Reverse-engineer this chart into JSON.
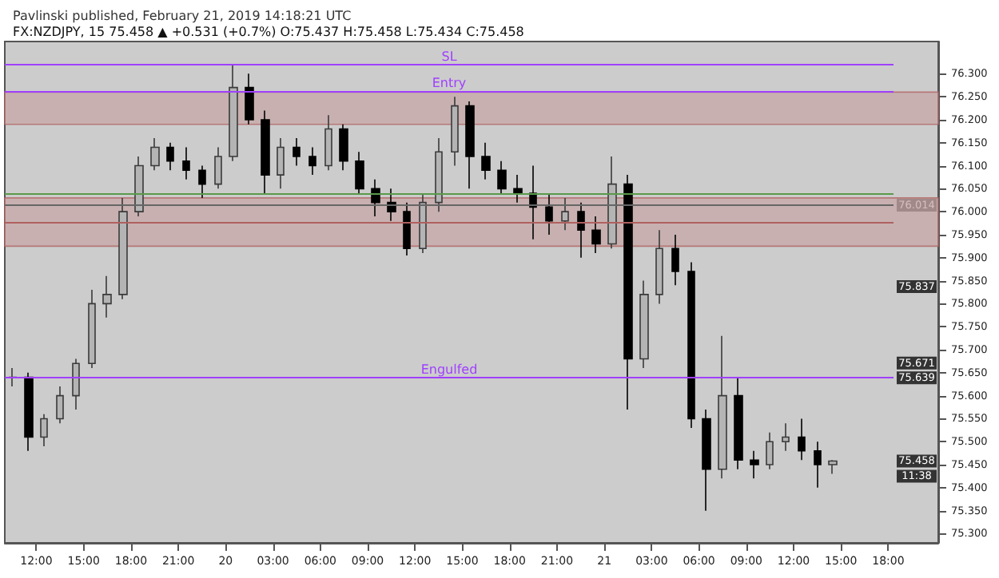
{
  "chart_data": {
    "type": "candlestick",
    "title": "Pavlinski published, February 21, 2019 14:18:21 UTC",
    "subtitle": "FX:NZDJPY, 15 75.458 ▲ +0.531 (+0.7%) O:75.437 H:75.458 L:75.434 C:75.458",
    "x": [
      "2019-02-19T10:30",
      "2019-02-19T11:30",
      "2019-02-19T12:30",
      "2019-02-19T13:30",
      "2019-02-19T14:30",
      "2019-02-19T15:30",
      "2019-02-19T16:30",
      "2019-02-19T17:30",
      "2019-02-19T18:30",
      "2019-02-19T19:30",
      "2019-02-19T20:30",
      "2019-02-19T21:30",
      "2019-02-19T22:30",
      "2019-02-19T23:30",
      "2019-02-20T00:30",
      "2019-02-20T01:30",
      "2019-02-20T02:30",
      "2019-02-20T03:30",
      "2019-02-20T04:30",
      "2019-02-20T05:30",
      "2019-02-20T06:30",
      "2019-02-20T07:30",
      "2019-02-20T08:30",
      "2019-02-20T09:30",
      "2019-02-20T10:30",
      "2019-02-20T11:30",
      "2019-02-20T12:30",
      "2019-02-20T13:30",
      "2019-02-20T14:30",
      "2019-02-20T15:30",
      "2019-02-20T16:30",
      "2019-02-20T17:30",
      "2019-02-20T18:30",
      "2019-02-20T19:30",
      "2019-02-20T20:30",
      "2019-02-20T21:30",
      "2019-02-20T22:30",
      "2019-02-20T23:30",
      "2019-02-21T00:30",
      "2019-02-21T01:30",
      "2019-02-21T02:30",
      "2019-02-21T03:30",
      "2019-02-21T04:30",
      "2019-02-21T05:30",
      "2019-02-21T06:30",
      "2019-02-21T07:30",
      "2019-02-21T08:30",
      "2019-02-21T09:30",
      "2019-02-21T10:30",
      "2019-02-21T11:30",
      "2019-02-21T12:30",
      "2019-02-21T13:30",
      "2019-02-21T14:30"
    ],
    "ohlc": [
      [
        75.64,
        75.66,
        75.62,
        75.64
      ],
      [
        75.64,
        75.65,
        75.48,
        75.51
      ],
      [
        75.51,
        75.56,
        75.49,
        75.55
      ],
      [
        75.55,
        75.62,
        75.54,
        75.6
      ],
      [
        75.6,
        75.68,
        75.57,
        75.67
      ],
      [
        75.67,
        75.83,
        75.66,
        75.8
      ],
      [
        75.8,
        75.86,
        75.77,
        75.82
      ],
      [
        75.82,
        76.03,
        75.81,
        76.0
      ],
      [
        76.0,
        76.12,
        75.99,
        76.1
      ],
      [
        76.1,
        76.16,
        76.09,
        76.14
      ],
      [
        76.14,
        76.15,
        76.09,
        76.11
      ],
      [
        76.11,
        76.14,
        76.07,
        76.09
      ],
      [
        76.09,
        76.1,
        76.03,
        76.06
      ],
      [
        76.06,
        76.14,
        76.05,
        76.12
      ],
      [
        76.12,
        76.32,
        76.11,
        76.27
      ],
      [
        76.27,
        76.3,
        76.19,
        76.2
      ],
      [
        76.2,
        76.22,
        76.04,
        76.08
      ],
      [
        76.08,
        76.16,
        76.05,
        76.14
      ],
      [
        76.14,
        76.16,
        76.1,
        76.12
      ],
      [
        76.12,
        76.14,
        76.08,
        76.1
      ],
      [
        76.1,
        76.21,
        76.09,
        76.18
      ],
      [
        76.18,
        76.19,
        76.09,
        76.11
      ],
      [
        76.11,
        76.13,
        76.04,
        76.05
      ],
      [
        76.05,
        76.07,
        75.99,
        76.02
      ],
      [
        76.02,
        76.05,
        75.98,
        76.0
      ],
      [
        76.0,
        76.02,
        75.905,
        75.92
      ],
      [
        75.92,
        76.04,
        75.91,
        76.02
      ],
      [
        76.02,
        76.16,
        76.0,
        76.13
      ],
      [
        76.13,
        76.25,
        76.1,
        76.23
      ],
      [
        76.23,
        76.24,
        76.05,
        76.12
      ],
      [
        76.12,
        76.15,
        76.07,
        76.09
      ],
      [
        76.09,
        76.11,
        76.04,
        76.05
      ],
      [
        76.05,
        76.08,
        76.02,
        76.04
      ],
      [
        76.04,
        76.1,
        75.94,
        76.01
      ],
      [
        76.01,
        76.04,
        75.95,
        75.98
      ],
      [
        75.98,
        76.03,
        75.96,
        76.0
      ],
      [
        76.0,
        76.02,
        75.9,
        75.96
      ],
      [
        75.96,
        75.99,
        75.91,
        75.93
      ],
      [
        75.93,
        76.12,
        75.92,
        76.06
      ],
      [
        76.06,
        76.08,
        75.57,
        75.68
      ],
      [
        75.68,
        75.85,
        75.66,
        75.82
      ],
      [
        75.82,
        75.96,
        75.8,
        75.92
      ],
      [
        75.92,
        75.95,
        75.84,
        75.87
      ],
      [
        75.87,
        75.89,
        75.53,
        75.55
      ],
      [
        75.55,
        75.57,
        75.35,
        75.44
      ],
      [
        75.44,
        75.73,
        75.42,
        75.6
      ],
      [
        75.6,
        75.64,
        75.44,
        75.46
      ],
      [
        75.46,
        75.48,
        75.42,
        75.45
      ],
      [
        75.45,
        75.52,
        75.44,
        75.5
      ],
      [
        75.5,
        75.54,
        75.48,
        75.51
      ],
      [
        75.51,
        75.55,
        75.46,
        75.48
      ],
      [
        75.48,
        75.5,
        75.4,
        75.45
      ],
      [
        75.45,
        75.46,
        75.43,
        75.458
      ]
    ],
    "xlim": [
      "2019-02-19T10:00",
      "2019-02-21T21:10"
    ],
    "xticks": [
      {
        "value": "2019-02-19T12:00",
        "label": "12:00"
      },
      {
        "value": "2019-02-19T15:00",
        "label": "15:00"
      },
      {
        "value": "2019-02-19T18:00",
        "label": "18:00"
      },
      {
        "value": "2019-02-19T21:00",
        "label": "21:00"
      },
      {
        "value": "2019-02-20T00:00",
        "label": "20"
      },
      {
        "value": "2019-02-20T03:00",
        "label": "03:00"
      },
      {
        "value": "2019-02-20T06:00",
        "label": "06:00"
      },
      {
        "value": "2019-02-20T09:00",
        "label": "09:00"
      },
      {
        "value": "2019-02-20T12:00",
        "label": "12:00"
      },
      {
        "value": "2019-02-20T15:00",
        "label": "15:00"
      },
      {
        "value": "2019-02-20T18:00",
        "label": "18:00"
      },
      {
        "value": "2019-02-20T21:00",
        "label": "21:00"
      },
      {
        "value": "2019-02-21T00:00",
        "label": "21"
      },
      {
        "value": "2019-02-21T03:00",
        "label": "03:00"
      },
      {
        "value": "2019-02-21T06:00",
        "label": "06:00"
      },
      {
        "value": "2019-02-21T09:00",
        "label": "09:00"
      },
      {
        "value": "2019-02-21T12:00",
        "label": "12:00"
      },
      {
        "value": "2019-02-21T15:00",
        "label": "15:00"
      },
      {
        "value": "2019-02-21T18:00",
        "label": "18:00"
      }
    ],
    "ylim": [
      75.28,
      76.37
    ],
    "yticks": [
      {
        "value": 75.3,
        "label": "75.300"
      },
      {
        "value": 75.35,
        "label": "75.350"
      },
      {
        "value": 75.4,
        "label": "75.400"
      },
      {
        "value": 75.45,
        "label": "75.450"
      },
      {
        "value": 75.5,
        "label": "75.500"
      },
      {
        "value": 75.55,
        "label": "75.550"
      },
      {
        "value": 75.6,
        "label": "75.600"
      },
      {
        "value": 75.65,
        "label": "75.650"
      },
      {
        "value": 75.7,
        "label": "75.700"
      },
      {
        "value": 75.75,
        "label": "75.750"
      },
      {
        "value": 75.8,
        "label": "75.800"
      },
      {
        "value": 75.85,
        "label": "75.850"
      },
      {
        "value": 75.9,
        "label": "75.900"
      },
      {
        "value": 75.95,
        "label": "75.950"
      },
      {
        "value": 76.0,
        "label": "76.000"
      },
      {
        "value": 76.05,
        "label": "76.050"
      },
      {
        "value": 76.1,
        "label": "76.100"
      },
      {
        "value": 76.15,
        "label": "76.150"
      },
      {
        "value": 76.2,
        "label": "76.200"
      },
      {
        "value": 76.25,
        "label": "76.250"
      },
      {
        "value": 76.3,
        "label": "76.300"
      }
    ],
    "bands": [
      {
        "axis": "y",
        "from": 76.19,
        "to": 76.26,
        "color": "#c7a7a7"
      },
      {
        "axis": "y",
        "from": 75.925,
        "to": 76.03,
        "color": "#c7a7a7"
      }
    ],
    "ref_lines": [
      {
        "axis": "y",
        "value": 76.32,
        "label": "SL",
        "color": "#a040ff"
      },
      {
        "axis": "y",
        "value": 76.262,
        "label": "Entry",
        "color": "#a040ff"
      },
      {
        "axis": "y",
        "value": 76.04,
        "color": "#5a9a4a"
      },
      {
        "axis": "y",
        "value": 76.014,
        "color": "#666666"
      },
      {
        "axis": "y",
        "value": 75.978,
        "color": "#b06060"
      },
      {
        "axis": "y",
        "value": 75.639,
        "label": "Engulfed",
        "color": "#a040ff"
      }
    ],
    "annotations": [
      {
        "text": "76.014",
        "y": 76.014
      },
      {
        "text": "75.837",
        "y": 75.837
      },
      {
        "text": "75.671",
        "y": 75.671
      },
      {
        "text": "75.639",
        "y": 75.639
      },
      {
        "text": "75.458",
        "y": 75.458
      },
      {
        "text": "11:38",
        "y": 75.425
      }
    ]
  }
}
